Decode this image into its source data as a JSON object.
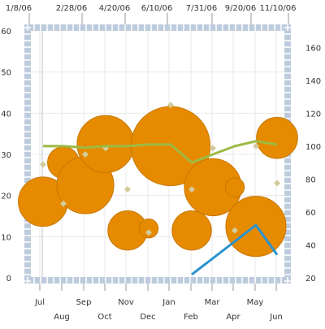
{
  "chart_data": {
    "type": "bubble",
    "title": "",
    "colors": {
      "bubble": "#E68A00",
      "bubble_stroke": "#C87700",
      "diamond": "#D4CB9B",
      "green_line": "#9DBA43",
      "blue_line": "#2A93D0",
      "frame": "#BDCCDD",
      "grid": "#E8E8E8"
    },
    "left_axis": {
      "min": 0,
      "max": 60,
      "ticks": [
        "0",
        "10",
        "20",
        "30",
        "40",
        "50",
        "60"
      ]
    },
    "right_axis": {
      "min": 20,
      "max": 170,
      "ticks": [
        "20",
        "40",
        "60",
        "80",
        "100",
        "120",
        "140",
        "160"
      ]
    },
    "top_axis": {
      "ticks": [
        "1/8/06",
        "2/28/06",
        "4/20/06",
        "6/10/06",
        "7/31/06",
        "9/20/06",
        "11/10/06"
      ]
    },
    "bottom_axis": {
      "ticks": [
        "Jul",
        "Aug",
        "Sep",
        "Oct",
        "Nov",
        "Dec",
        "Jan",
        "Feb",
        "Mar",
        "Apr",
        "May",
        "Jun"
      ]
    },
    "bubbles": [
      {
        "month": "Jul",
        "y": 18.5,
        "size": 0.78
      },
      {
        "month": "Aug",
        "y": 28,
        "size": 0.5
      },
      {
        "month": "Sep",
        "y": 22.5,
        "size": 0.9
      },
      {
        "month": "Sep-Oct",
        "y": 32.5,
        "size": 0.9
      },
      {
        "month": "Nov",
        "y": 11.5,
        "size": 0.62
      },
      {
        "month": "Dec",
        "y": 12,
        "size": 0.3
      },
      {
        "month": "Jan",
        "y": 32,
        "size": 1.25
      },
      {
        "month": "Feb",
        "y": 11.5,
        "size": 0.62
      },
      {
        "month": "Mar",
        "y": 22,
        "size": 0.9
      },
      {
        "month": "Apr",
        "y": 22,
        "size": 0.3
      },
      {
        "month": "May",
        "y": 12.5,
        "size": 0.95
      },
      {
        "month": "Jun",
        "y": 34,
        "size": 0.65
      }
    ],
    "diamonds": [
      {
        "month": "Jul",
        "y": 27.5
      },
      {
        "month": "Aug",
        "y": 18
      },
      {
        "month": "Sep",
        "y": 30
      },
      {
        "month": "Oct",
        "y": 31.5
      },
      {
        "month": "Nov",
        "y": 21.5
      },
      {
        "month": "Dec",
        "y": 11
      },
      {
        "month": "Jan",
        "y": 42
      },
      {
        "month": "Feb",
        "y": 21.5
      },
      {
        "month": "Mar",
        "y": 31.5
      },
      {
        "month": "Apr",
        "y": 11.5
      },
      {
        "month": "May",
        "y": 32
      },
      {
        "month": "Jun",
        "y": 23
      }
    ],
    "green_line": {
      "axis": "right",
      "points": [
        {
          "month": "Jul",
          "y": 100
        },
        {
          "month": "Aug",
          "y": 100
        },
        {
          "month": "Sep",
          "y": 99
        },
        {
          "month": "Oct",
          "y": 100
        },
        {
          "month": "Nov",
          "y": 100
        },
        {
          "month": "Dec",
          "y": 101
        },
        {
          "month": "Jan",
          "y": 101
        },
        {
          "month": "Feb",
          "y": 90
        },
        {
          "month": "Mar",
          "y": 95
        },
        {
          "month": "Apr",
          "y": 100
        },
        {
          "month": "May",
          "y": 103
        },
        {
          "month": "Jun",
          "y": 101
        }
      ]
    },
    "blue_line": {
      "axis": "right",
      "points": [
        {
          "month": "Feb",
          "y": 22
        },
        {
          "month": "May",
          "y": 52
        },
        {
          "month": "Jun",
          "y": 34
        }
      ]
    }
  }
}
